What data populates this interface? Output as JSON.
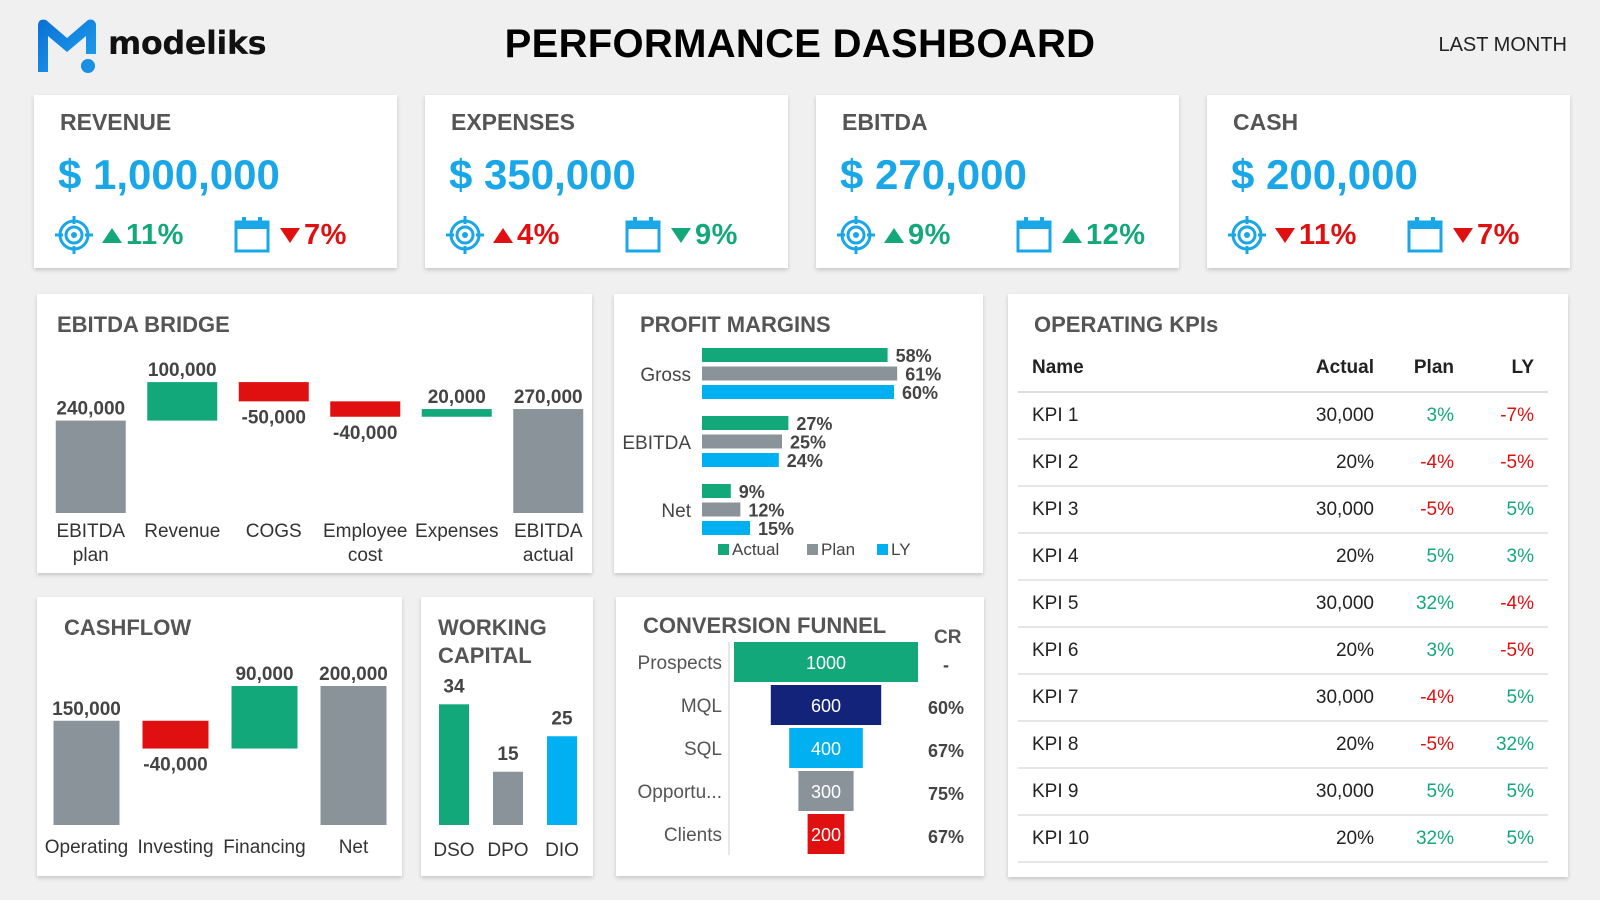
{
  "header": {
    "brand": "modeliks",
    "title": "PERFORMANCE DASHBOARD",
    "period": "LAST MONTH"
  },
  "colors": {
    "accent": "#1aa7e8",
    "green": "#12a87a",
    "red": "#e01010",
    "gray": "#8a9399",
    "navy": "#14237a",
    "blue": "#00b0f0"
  },
  "kpis": [
    {
      "title": "REVENUE",
      "value": "$ 1,000,000",
      "target_pct": "11%",
      "target_dir": "up",
      "period_pct": "7%",
      "period_dir": "down"
    },
    {
      "title": "EXPENSES",
      "value": "$ 350,000",
      "target_pct": "4%",
      "target_dir": "up-red",
      "period_pct": "9%",
      "period_dir": "down-green"
    },
    {
      "title": "EBITDA",
      "value": "$ 270,000",
      "target_pct": "9%",
      "target_dir": "up",
      "period_pct": "12%",
      "period_dir": "up"
    },
    {
      "title": "CASH",
      "value": "$ 200,000",
      "target_pct": "11%",
      "target_dir": "down",
      "period_pct": "7%",
      "period_dir": "down"
    }
  ],
  "icons": {
    "target": "target-icon",
    "calendar": "calendar-icon"
  },
  "ebitda_bridge": {
    "title": "EBITDA BRIDGE",
    "chart_data": {
      "type": "bar",
      "subtype": "waterfall",
      "categories": [
        "EBITDA plan",
        "Revenue",
        "COGS",
        "Employee cost",
        "Expenses",
        "EBITDA actual"
      ],
      "category_lines": [
        [
          "EBITDA",
          "plan"
        ],
        [
          "Revenue"
        ],
        [
          "COGS"
        ],
        [
          "Employee",
          "cost"
        ],
        [
          "Expenses"
        ],
        [
          "EBITDA",
          "actual"
        ]
      ],
      "values": [
        240000,
        100000,
        -50000,
        -40000,
        20000,
        270000
      ],
      "value_labels": [
        "240,000",
        "100,000",
        "-50,000",
        "-40,000",
        "20,000",
        "270,000"
      ],
      "kinds": [
        "total",
        "delta",
        "delta",
        "delta",
        "delta",
        "total"
      ]
    }
  },
  "profit_margins": {
    "title": "PROFIT MARGINS",
    "chart_data": {
      "type": "bar",
      "orientation": "horizontal",
      "categories": [
        "Gross",
        "EBITDA",
        "Net"
      ],
      "series": [
        {
          "name": "Actual",
          "values": [
            58,
            27,
            9
          ],
          "labels": [
            "58%",
            "27%",
            "9%"
          ]
        },
        {
          "name": "Plan",
          "values": [
            61,
            25,
            12
          ],
          "labels": [
            "61%",
            "25%",
            "12%"
          ]
        },
        {
          "name": "LY",
          "values": [
            60,
            24,
            15
          ],
          "labels": [
            "60%",
            "24%",
            "15%"
          ]
        }
      ],
      "legend": "bottom"
    }
  },
  "cashflow": {
    "title": "CASHFLOW",
    "chart_data": {
      "type": "bar",
      "subtype": "waterfall",
      "categories": [
        "Operating",
        "Investing",
        "Financing",
        "Net"
      ],
      "values": [
        150000,
        -40000,
        90000,
        200000
      ],
      "value_labels": [
        "150,000",
        "-40,000",
        "90,000",
        "200,000"
      ],
      "kinds": [
        "total",
        "delta",
        "delta",
        "total"
      ]
    }
  },
  "working_capital": {
    "title_line1": "WORKING",
    "title_line2": "CAPITAL",
    "chart_data": {
      "type": "bar",
      "categories": [
        "DSO",
        "DPO",
        "DIO"
      ],
      "values": [
        34,
        15,
        25
      ],
      "value_labels": [
        "34",
        "15",
        "25"
      ]
    }
  },
  "funnel": {
    "title": "CONVERSION FUNNEL",
    "cr_header": "CR",
    "chart_data": {
      "type": "bar",
      "subtype": "funnel",
      "categories": [
        "Prospects",
        "MQL",
        "SQL",
        "Opportu...",
        "Clients"
      ],
      "values": [
        1000,
        600,
        400,
        300,
        200
      ],
      "value_labels": [
        "1000",
        "600",
        "400",
        "300",
        "200"
      ],
      "cr": [
        "-",
        "60%",
        "67%",
        "75%",
        "67%"
      ]
    }
  },
  "operating_kpis": {
    "title": "OPERATING KPIs",
    "columns": [
      "Name",
      "Actual",
      "Plan",
      "LY"
    ],
    "rows": [
      {
        "name": "KPI 1",
        "actual": "30,000",
        "plan": "3%",
        "ly": "-7%"
      },
      {
        "name": "KPI 2",
        "actual": "20%",
        "plan": "-4%",
        "ly": "-5%"
      },
      {
        "name": "KPI 3",
        "actual": "30,000",
        "plan": "-5%",
        "ly": "5%"
      },
      {
        "name": "KPI 4",
        "actual": "20%",
        "plan": "5%",
        "ly": "3%"
      },
      {
        "name": "KPI 5",
        "actual": "30,000",
        "plan": "32%",
        "ly": "-4%"
      },
      {
        "name": "KPI 6",
        "actual": "20%",
        "plan": "3%",
        "ly": "-5%"
      },
      {
        "name": "KPI 7",
        "actual": "30,000",
        "plan": "-4%",
        "ly": "5%"
      },
      {
        "name": "KPI 8",
        "actual": "20%",
        "plan": "-5%",
        "ly": "32%"
      },
      {
        "name": "KPI 9",
        "actual": "30,000",
        "plan": "5%",
        "ly": "5%"
      },
      {
        "name": "KPI 10",
        "actual": "20%",
        "plan": "32%",
        "ly": "5%"
      }
    ]
  }
}
